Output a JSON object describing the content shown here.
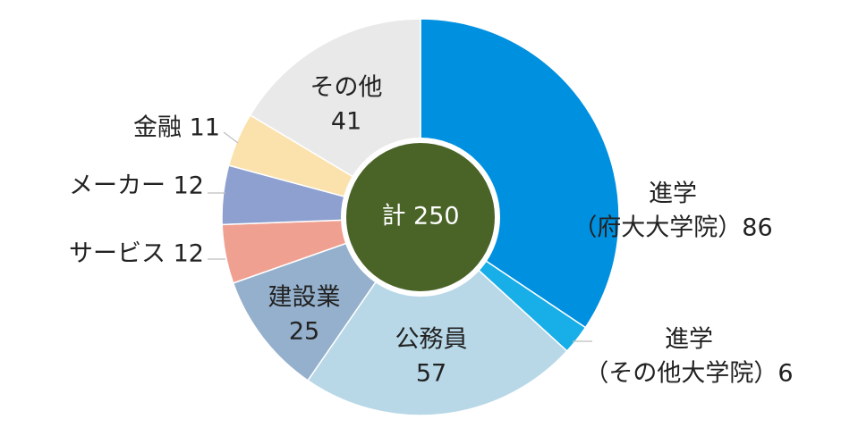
{
  "chart_data": {
    "type": "pie",
    "total_label": "計 250",
    "slices": [
      {
        "lines": [
          "進学",
          "（府大大学院）86"
        ],
        "value": 86,
        "color": "#0090e0"
      },
      {
        "lines": [
          "進学",
          "（その他大学院）6"
        ],
        "value": 6,
        "color": "#18aee8"
      },
      {
        "lines": [
          "公務員",
          "57"
        ],
        "value": 57,
        "color": "#b8d8e8"
      },
      {
        "lines": [
          "建設業",
          "25"
        ],
        "value": 25,
        "color": "#94b0cc"
      },
      {
        "lines": [
          "サービス 12"
        ],
        "value": 12,
        "color": "#f0a090"
      },
      {
        "lines": [
          "メーカー 12"
        ],
        "value": 12,
        "color": "#8ea0d0"
      },
      {
        "lines": [
          "金融 11"
        ],
        "value": 11,
        "color": "#fbe2ad"
      },
      {
        "lines": [
          "その他",
          "41"
        ],
        "value": 41,
        "color": "#e9e9e9"
      }
    ],
    "center_color": "#4a6428"
  }
}
